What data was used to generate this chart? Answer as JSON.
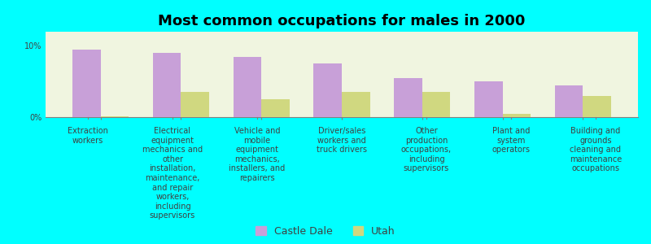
{
  "title": "Most common occupations for males in 2000",
  "background_color": "#00FFFF",
  "plot_background_color": "#F0F5E0",
  "categories": [
    "Extraction\nworkers",
    "Electrical\nequipment\nmechanics and\nother\ninstallation,\nmaintenance,\nand repair\nworkers,\nincluding\nsupervisors",
    "Vehicle and\nmobile\nequipment\nmechanics,\ninstallers, and\nrepairers",
    "Driver/sales\nworkers and\ntruck drivers",
    "Other\nproduction\noccupations,\nincluding\nsupervisors",
    "Plant and\nsystem\noperators",
    "Building and\ngrounds\ncleaning and\nmaintenance\noccupations"
  ],
  "castle_dale_values": [
    9.5,
    9.0,
    8.5,
    7.5,
    5.5,
    5.0,
    4.5
  ],
  "utah_values": [
    0.1,
    3.5,
    2.5,
    3.5,
    3.5,
    0.5,
    3.0
  ],
  "castle_dale_color": "#C8A0D8",
  "utah_color": "#D0D880",
  "ylim": [
    0,
    12
  ],
  "yticks": [
    0,
    10
  ],
  "ytick_labels": [
    "0%",
    "10%"
  ],
  "bar_width": 0.35,
  "title_fontsize": 13,
  "tick_fontsize": 7,
  "legend_fontsize": 9,
  "legend_marker_color_cd": "#C8A0D8",
  "legend_marker_color_ut": "#D0D880"
}
